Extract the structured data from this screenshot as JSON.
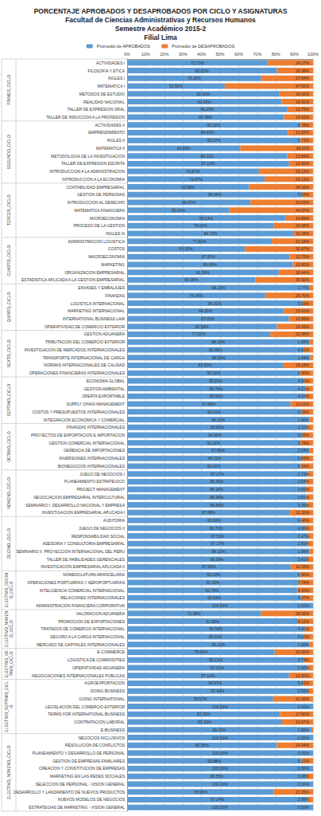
{
  "chart_data": {
    "type": "bar",
    "orientation": "horizontal",
    "stacked": true,
    "data_labels": true,
    "grid": true,
    "legend": "top",
    "title": "PORCENTAJE APROBADOS Y DESAPROBADOS POR CICLO Y ASIGNATURAS",
    "subtitle": [
      "Facultad de Ciencias Administrativas y Recursos Humanos",
      "Semestre Académico 2015-2",
      "Filial Lima"
    ],
    "xlim": [
      0,
      100
    ],
    "xticks": [
      {
        "value": 0,
        "label": "0%"
      },
      {
        "value": 10,
        "label": "10%"
      },
      {
        "value": 20,
        "label": "20%"
      },
      {
        "value": 30,
        "label": "30%"
      },
      {
        "value": 40,
        "label": "40%"
      },
      {
        "value": 50,
        "label": "50%"
      },
      {
        "value": 60,
        "label": "60%"
      },
      {
        "value": 70,
        "label": "70%"
      },
      {
        "value": 80,
        "label": "80%"
      },
      {
        "value": 90,
        "label": "90%"
      },
      {
        "value": 100,
        "label": "100%"
      }
    ],
    "groups": [
      {
        "name": "PRIMER_CICLO",
        "count": 8
      },
      {
        "name": "SEGUNDO_CICLO",
        "count": 8
      },
      {
        "name": "TERCER_CICLO",
        "count": 7
      },
      {
        "name": "CUARTO_CICLO",
        "count": 6
      },
      {
        "name": "QUINTO_CICLO",
        "count": 6
      },
      {
        "name": "SEXTO_CICLO",
        "count": 6
      },
      {
        "name": "SEPTIMO_CICLO",
        "count": 6
      },
      {
        "name": "OCTAVO_CICLO",
        "count": 6
      },
      {
        "name": "NOVENO_CICLO",
        "count": 6
      },
      {
        "name": "DECIMO_CICLO",
        "count": 7
      },
      {
        "name": "ELECTIVO_DECIMO_CICLO",
        "count": 5
      },
      {
        "name": "ELECTIVO_NOVENO_CICLO",
        "count": 5
      },
      {
        "name": "ELECTIVO_OCTAVO_CICLO",
        "count": 4
      },
      {
        "name": "ELECTIVO_SEPTIMO_CICLO",
        "count": 7
      },
      {
        "name": "ELECTIVO_NOVENO_CICLO",
        "count": 10
      }
    ],
    "categories": [
      "ACTIVIDADES I",
      "FILOSOFIA Y ETICA",
      "INGLES I",
      "MATEMATICA I",
      "METODOS DE ESTUDIO",
      "REALIDAD NACIONAL",
      "TALLER DE EXPRESION ORAL",
      "TALLER DE INDUCCION A LA PROFESION",
      "ACTIVIDADES II",
      "EMPRENDIMIENTO",
      "INGLES II",
      "MATEMATICA II",
      "METODOLOGIA DE LA INVESTIGACION",
      "TALLER DE EXPRESION ESCRITA",
      "INTRODUCCION A LA ADMINISTRACION",
      "INTRODUCCION A LA ECONOMIA",
      "CONTABILIDAD EMPRESARIAL",
      "GESTION DE PERSONAS",
      "INTRODUCCION AL DERECHO",
      "MATEMATICA FINANCIERA",
      "MICROECONOMIA",
      "PROCESO DE LA GESTION",
      "INGLES III",
      "ADMINISTRACION LOGISTICA",
      "COSTOS",
      "MACROECONOMIA",
      "MARKETING",
      "ORGANIZACION EMPRESARIAL",
      "ESTADISTICA APLICADA A LA GESTION EMPRESARIAL",
      "ENVASES Y EMBALAJES",
      "FINANZAS",
      "LOGISTICA INTERNACIONAL",
      "MARKETING INTERNACIONAL",
      "INTERNATIONAL BUSINESS LAW",
      "OPERATIVIDAD DE COMERCIO EXTERIOR",
      "GESTION ADUANERA",
      "TRIBUTACION DEL COMERCIO EXTERIOR",
      "INVESTIGACION DE MERCADOS INTERNACIONALES",
      "TRANSPORTE INTERNACIONAL DE CARGA",
      "NORMAS INTERNACIONALES DE CALIDAD",
      "OPERACIONES FINANCIERAS INTERNACIONALES",
      "ECONOMIA GLOBAL",
      "GESTION AMBIENTAL",
      "OFERTA EXPORTABLE",
      "SUPPLY CHAIN MANAGEMENT",
      "COSTOS Y PRESUPUESTOS INTERNACIONALES",
      "INTEGRACION ECONOMICA Y COMERCIAL",
      "FINANZAS INTERNACIONALES",
      "PROYECTOS DE EXPORTACION E IMPORTACION",
      "GESTION COMERCIAL INTERNACIONAL",
      "GERENCIA DE IMPORTACIONES",
      "INVERSIONES INTERNACIONALES",
      "BIONEGOCIOS INTERNACIONALES",
      "JUEGO DE NEGOCIOS I",
      "PLANEAMIENTO ESTRATEGICO",
      "PROJECT MANAGEMENT",
      "NEGOCIACION EMPRESARIAL INTERCULTURAL",
      "SEMINARIO I: DESARROLLO NACIONAL Y EMPRESA",
      "INVESTIGACION EMPRESARIAL APLICADA I",
      "AUDITORIA",
      "JUEGO DE NEGOCIOS II",
      "RESPONSABILIDAD SOCIAL",
      "ASESORIA Y CONSULTORIA EMPRESARIAL",
      "SEMINARIO II: PROYECCION INTERNACIONAL DEL PERU",
      "TALLER DE HABILIDADES GERENCIALES",
      "INVESTIGACION EMPRESARIAL APLICADA II",
      "NOMENCLATURA ARANCELARIA",
      "OPERACIONES PORTUARIAS Y AEROPORTUARIAS",
      "INTELIGENCIA COMERCIAL INTERNACIONAL",
      "RELACIONES INTERNACIONALES",
      "ADMINISTRACION FINANCIERA CORPORATIVA",
      "VALORACION ADUANERA",
      "PROMOCION DE EXPORTACIONES",
      "TRATADOS DE COMERCIO INTERNACIONAL",
      "SEGURO A LA CARGA INTERNACIONAL",
      "MERCADO DE CAPITALES INTERNACIONALES",
      "E-COMMERCE",
      "LOGISTICA DE COMMODITIES",
      "OPERATIVIDAD ADUANERA",
      "NEGOCIACIONES INTERNACIONALES PUBLICAS",
      "AGROEXPORTACION",
      "DOING BUSINESS",
      "GOING INTERNATIONAL",
      "LEGISLACION DEL COMERCIO EXTERIOR",
      "TERMS FOR INTERNATIONAL BUSINESS",
      "CONTRATACION LABORAL",
      "E-BUSINESS",
      "NEGOCIOS INCLUSIVOS",
      "RESOLUCION DE CONFLICTOS",
      "PLANEAMIENTO Y DESARROLLO DE PERSONAL",
      "GESTION DE EMPRESAS FAMILIARES",
      "CREACION Y CONSTITUCION DE EMPRESAS",
      "MARKETING EN LAS REDES SOCIALES",
      "SELECCION DE PERSONAL - VISION GENERAL",
      "DESARROLLO Y LANZAMIENTO DE NUEVOS PRODUCTOS",
      "NUEVOS MODELOS DE NEGOCIOS",
      "ESTRATEGIAS DE MARKETING - VISION GENERAL"
    ],
    "series": [
      {
        "name": "Promedio de APROBADOS",
        "color": "#5b9bd5",
        "values": [
          75.73,
          80.62,
          72.16,
          52.5,
          82.0,
          83.09,
          86.25,
          84.38,
          93.22,
          86.45,
          93.27,
          60.89,
          86.11,
          87.1,
          70.87,
          73.87,
          65.68,
          94.34,
          66.37,
          55.03,
          85.14,
          79.02,
          89.71,
          77.82,
          63.33,
          87.3,
          89.08,
          81.56,
          69.08,
          98.23,
          74.3,
          94.31,
          84.39,
          87.05,
          80.58,
          77.02,
          98.15,
          95.08,
          98.56,
          83.82,
          93.1,
          95.2,
          95.79,
          95.9,
          87.89,
          93.61,
          98.1,
          96.9,
          94.35,
          93.21,
          97.96,
          94.11,
          93.41,
          97.27,
          96.36,
          96.18,
          96.39,
          96.65,
          87.68,
          93.6,
          95.7,
          97.53,
          97.17,
          98.12,
          96.59,
          87.95,
          93.1,
          92.26,
          91.7,
          93.63,
          100.0,
          71.98,
          91.88,
          95.59,
          95.0,
          98.1,
          79.4,
          95.21,
          97.1,
          87.1,
          94.57,
          97.44,
          78.57,
          100.0,
          82.2,
          83.33,
          99.15,
          100.0,
          80.56,
          100.0,
          93.88,
          100.0,
          96.55,
          100.0,
          78.95,
          97.14,
          100.0
        ],
        "value_labels": [
          "75.73%",
          "80.62%",
          "72.16%",
          "52.50%",
          "82.00%",
          "83.09%",
          "86.25%",
          "84.38%",
          "93.22%",
          "86.45%",
          "93.27%",
          "60.89%",
          "86.11%",
          "87.10%",
          "70.87%",
          "73.87%",
          "65.68%",
          "94.34%",
          "66.37%",
          "55.03%",
          "85.14%",
          "79.02%",
          "89.71%",
          "77.82%",
          "63.33%",
          "87.30%",
          "89.08%",
          "81.56%",
          "69.08%",
          "98.23%",
          "74.30%",
          "94.31%",
          "84.39%",
          "87.05%",
          "80.58%",
          "77.02%",
          "98.15%",
          "95.08%",
          "98.56%",
          "83.82%",
          "93.10%",
          "95.20%",
          "95.79%",
          "95.90%",
          "87.89%",
          "93.61%",
          "98.10%",
          "96.90%",
          "94.35%",
          "93.21%",
          "97.96%",
          "94.11%",
          "93.41%",
          "97.27%",
          "96.36%",
          "96.18%",
          "96.39%",
          "96.65%",
          "87.68%",
          "93.60%",
          "95.70%",
          "97.53%",
          "97.17%",
          "98.12%",
          "96.59%",
          "87.95%",
          "93.10%",
          "92.26%",
          "91.70%",
          "93.63%",
          "100.00%",
          "71.98%",
          "91.88%",
          "95.59%",
          "95.00%",
          "98.10%",
          "79.40%",
          "95.21%",
          "97.10%",
          "87.10%",
          "94.57%",
          "97.44%",
          "78.57%",
          "100.00%",
          "82.20%",
          "83.33%",
          "99.15%",
          "100.00%",
          "80.56%",
          "100.00%",
          "93.88%",
          "100.00%",
          "96.55%",
          "100.00%",
          "78.95%",
          "97.14%",
          "100.00%"
        ]
      },
      {
        "name": "Promedio de DESAPROBADOS",
        "color": "#ed7d31",
        "values": [
          24.27,
          19.38,
          27.84,
          47.5,
          18.0,
          16.91,
          13.75,
          15.62,
          6.78,
          13.55,
          6.73,
          39.11,
          13.89,
          12.9,
          29.13,
          26.13,
          34.32,
          5.66,
          33.63,
          44.97,
          14.86,
          20.98,
          10.29,
          22.18,
          36.67,
          12.7,
          10.92,
          18.44,
          30.92,
          1.77,
          25.7,
          5.69,
          15.61,
          12.95,
          19.42,
          22.98,
          1.85,
          4.92,
          1.44,
          16.18,
          6.9,
          4.8,
          4.21,
          4.1,
          12.11,
          6.39,
          1.9,
          3.1,
          5.65,
          6.79,
          2.04,
          5.89,
          6.59,
          2.73,
          3.64,
          3.82,
          3.61,
          3.35,
          12.32,
          6.4,
          4.3,
          2.47,
          2.83,
          1.88,
          3.41,
          12.05,
          6.9,
          7.74,
          8.3,
          6.37,
          0.0,
          28.02,
          8.12,
          4.41,
          5.0,
          1.9,
          20.6,
          4.79,
          2.9,
          12.9,
          5.43,
          2.56,
          21.43,
          0.0,
          17.8,
          16.67,
          0.85,
          0.0,
          19.44,
          0.0,
          6.12,
          0.0,
          3.45,
          0.0,
          21.05,
          2.86,
          0.0
        ],
        "value_labels": [
          "24.27%",
          "19.38%",
          "27.84%",
          "47.50%",
          "18.00%",
          "16.91%",
          "13.75%",
          "15.62%",
          "6.78%",
          "13.55%",
          "6.73%",
          "39.11%",
          "13.89%",
          "12.90%",
          "29.13%",
          "26.13%",
          "34.32%",
          "5.66%",
          "33.63%",
          "44.97%",
          "14.86%",
          "20.98%",
          "10.29%",
          "22.18%",
          "36.67%",
          "12.70%",
          "10.92%",
          "18.44%",
          "30.92%",
          "1.77%",
          "25.70%",
          "5.69%",
          "15.61%",
          "12.95%",
          "19.42%",
          "22.98%",
          "1.85%",
          "4.92%",
          "1.44%",
          "16.18%",
          "6.90%",
          "4.80%",
          "4.21%",
          "4.10%",
          "12.11%",
          "6.39%",
          "1.90%",
          "3.10%",
          "5.65%",
          "6.79%",
          "2.04%",
          "5.89%",
          "6.59%",
          "2.73%",
          "3.64%",
          "3.82%",
          "3.61%",
          "3.35%",
          "12.32%",
          "6.40%",
          "4.30%",
          "2.47%",
          "2.83%",
          "1.88%",
          "3.41%",
          "12.05%",
          "6.90%",
          "7.74%",
          "8.30%",
          "6.37%",
          "0.00%",
          "28.02%",
          "8.12%",
          "4.41%",
          "5.00%",
          "1.90%",
          "20.60%",
          "4.79%",
          "2.90%",
          "12.90%",
          "5.43%",
          "2.56%",
          "21.43%",
          "0.00%",
          "17.80%",
          "16.67%",
          "0.85%",
          "0.00%",
          "19.44%",
          "0.00%",
          "6.12%",
          "0.00%",
          "3.45%",
          "0.00%",
          "21.05%",
          "2.86%",
          "0.00%"
        ]
      }
    ]
  }
}
